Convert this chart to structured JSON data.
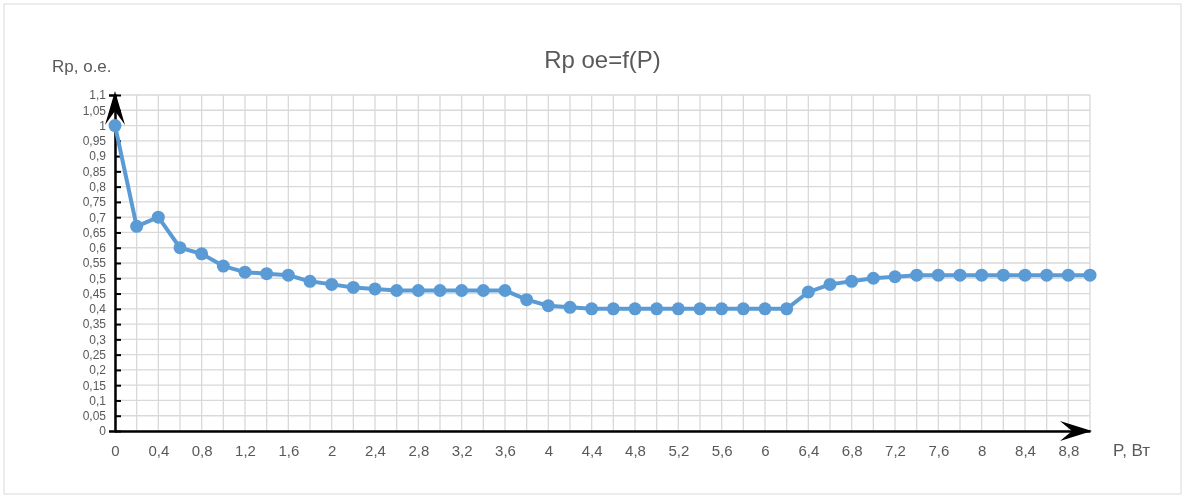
{
  "chart_data": {
    "type": "line",
    "title": "Rp oe=f(P)",
    "xlabel": "P, Вт",
    "ylabel": "Rp, o.e.",
    "x": [
      0,
      0.2,
      0.4,
      0.6,
      0.8,
      1.0,
      1.2,
      1.4,
      1.6,
      1.8,
      2.0,
      2.2,
      2.4,
      2.6,
      2.8,
      3.0,
      3.2,
      3.4,
      3.6,
      3.8,
      4.0,
      4.2,
      4.4,
      4.6,
      4.8,
      5.0,
      5.2,
      5.4,
      5.6,
      5.8,
      6.0,
      6.2,
      6.4,
      6.6,
      6.8,
      7.0,
      7.2,
      7.4,
      7.6,
      7.8,
      8.0,
      8.2,
      8.4,
      8.6,
      8.8,
      9.0
    ],
    "series": [
      {
        "color": "#5b9bd5",
        "values": [
          1.0,
          0.67,
          0.7,
          0.6,
          0.58,
          0.54,
          0.52,
          0.515,
          0.51,
          0.49,
          0.48,
          0.47,
          0.465,
          0.46,
          0.46,
          0.46,
          0.46,
          0.46,
          0.46,
          0.43,
          0.41,
          0.405,
          0.4,
          0.4,
          0.4,
          0.4,
          0.4,
          0.4,
          0.4,
          0.4,
          0.4,
          0.4,
          0.455,
          0.48,
          0.49,
          0.5,
          0.505,
          0.51,
          0.51,
          0.51,
          0.51,
          0.51,
          0.51,
          0.51,
          0.51,
          0.51
        ]
      }
    ],
    "xlim": [
      0,
      9.0
    ],
    "xticks": [
      0,
      {
        "value": 0.2,
        "label": null
      },
      {
        "value": 0.4,
        "label": "0,4"
      },
      {
        "value": 0.6,
        "label": null
      },
      {
        "value": 0.8,
        "label": "0,8"
      },
      {
        "value": 1.0,
        "label": null
      },
      {
        "value": 1.2,
        "label": "1,2"
      },
      {
        "value": 1.4,
        "label": null
      },
      {
        "value": 1.6,
        "label": "1,6"
      },
      {
        "value": 1.8,
        "label": null
      },
      2,
      {
        "value": 2.2,
        "label": null
      },
      {
        "value": 2.4,
        "label": "2,4"
      },
      {
        "value": 2.6,
        "label": null
      },
      {
        "value": 2.8,
        "label": "2,8"
      },
      {
        "value": 3.0,
        "label": null
      },
      {
        "value": 3.2,
        "label": "3,2"
      },
      {
        "value": 3.4,
        "label": null
      },
      {
        "value": 3.6,
        "label": "3,6"
      },
      {
        "value": 3.8,
        "label": null
      },
      4,
      {
        "value": 4.2,
        "label": null
      },
      {
        "value": 4.4,
        "label": "4,4"
      },
      {
        "value": 4.6,
        "label": null
      },
      {
        "value": 4.8,
        "label": "4,8"
      },
      {
        "value": 5.0,
        "label": null
      },
      {
        "value": 5.2,
        "label": "5,2"
      },
      {
        "value": 5.4,
        "label": null
      },
      {
        "value": 5.6,
        "label": "5,6"
      },
      {
        "value": 5.8,
        "label": null
      },
      6,
      {
        "value": 6.2,
        "label": null
      },
      {
        "value": 6.4,
        "label": "6,4"
      },
      {
        "value": 6.6,
        "label": null
      },
      {
        "value": 6.8,
        "label": "6,8"
      },
      {
        "value": 7.0,
        "label": null
      },
      {
        "value": 7.2,
        "label": "7,2"
      },
      {
        "value": 7.4,
        "label": null
      },
      {
        "value": 7.6,
        "label": "7,6"
      },
      {
        "value": 7.8,
        "label": null
      },
      8,
      {
        "value": 8.2,
        "label": null
      },
      {
        "value": 8.4,
        "label": "8,4"
      },
      {
        "value": 8.6,
        "label": null
      },
      {
        "value": 8.8,
        "label": "8,8"
      },
      {
        "value": 9.0,
        "label": null
      }
    ],
    "ylim": [
      0,
      1.1
    ],
    "yticks": [
      0,
      {
        "value": 0.05,
        "label": "0,05"
      },
      {
        "value": 0.1,
        "label": "0,1"
      },
      {
        "value": 0.15,
        "label": "0,15"
      },
      {
        "value": 0.2,
        "label": "0,2"
      },
      {
        "value": 0.25,
        "label": "0,25"
      },
      {
        "value": 0.3,
        "label": "0,3"
      },
      {
        "value": 0.35,
        "label": "0,35"
      },
      {
        "value": 0.4,
        "label": "0,4"
      },
      {
        "value": 0.45,
        "label": "0,45"
      },
      {
        "value": 0.5,
        "label": "0,5"
      },
      {
        "value": 0.55,
        "label": "0,55"
      },
      {
        "value": 0.6,
        "label": "0,6"
      },
      {
        "value": 0.65,
        "label": "0,65"
      },
      {
        "value": 0.7,
        "label": "0,7"
      },
      {
        "value": 0.75,
        "label": "0,75"
      },
      {
        "value": 0.8,
        "label": "0,8"
      },
      {
        "value": 0.85,
        "label": "0,85"
      },
      {
        "value": 0.9,
        "label": "0,9"
      },
      {
        "value": 0.95,
        "label": "0,95"
      },
      1,
      {
        "value": 1.05,
        "label": "1,05"
      },
      {
        "value": 1.1,
        "label": "1,1"
      }
    ],
    "grid": true,
    "legend": false,
    "marker": "circle",
    "line_style": "solid"
  }
}
